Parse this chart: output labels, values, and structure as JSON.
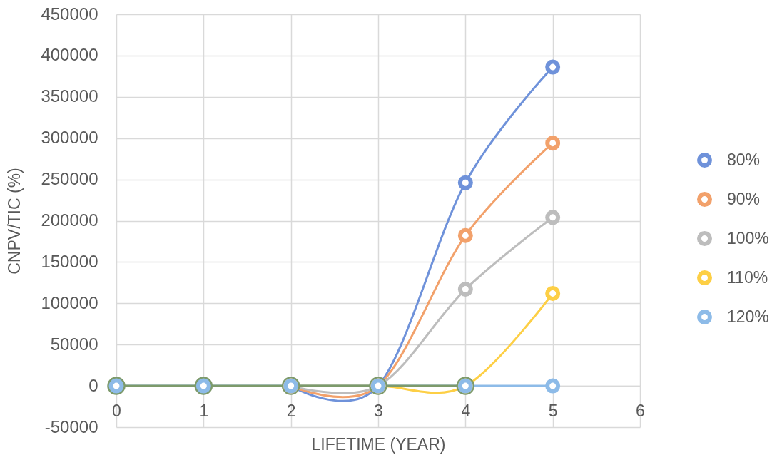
{
  "chart_data": {
    "type": "line",
    "xlabel": "LIFETIME (YEAR)",
    "ylabel": "CNPV/TIC (%)",
    "x": [
      0,
      1,
      2,
      3,
      4,
      5
    ],
    "series": [
      {
        "name": "80%",
        "color": "#6f92da",
        "values": [
          null,
          null,
          0,
          0,
          246000,
          386000
        ]
      },
      {
        "name": "90%",
        "color": "#f2a16b",
        "values": [
          null,
          null,
          0,
          0,
          182000,
          294000
        ]
      },
      {
        "name": "100%",
        "color": "#bdbdbd",
        "values": [
          null,
          null,
          0,
          0,
          117000,
          204000
        ]
      },
      {
        "name": "110%",
        "color": "#fdcf45",
        "values": [
          null,
          null,
          0,
          0,
          0,
          112000
        ]
      },
      {
        "name": "120%",
        "color": "#8dbbe8",
        "values": [
          0,
          0,
          0,
          0,
          0,
          0
        ]
      },
      {
        "color": "#7d9a6b",
        "values": [
          0,
          0,
          0,
          0,
          0,
          null
        ]
      }
    ],
    "xlim": [
      0,
      6
    ],
    "xticks": [
      0,
      1,
      2,
      3,
      4,
      5,
      6
    ],
    "ylim": [
      -50000,
      450000
    ],
    "yticks": [
      -50000,
      0,
      50000,
      100000,
      150000,
      200000,
      250000,
      300000,
      350000,
      400000,
      450000
    ],
    "grid": true,
    "legend": "right",
    "marker": "circle"
  }
}
